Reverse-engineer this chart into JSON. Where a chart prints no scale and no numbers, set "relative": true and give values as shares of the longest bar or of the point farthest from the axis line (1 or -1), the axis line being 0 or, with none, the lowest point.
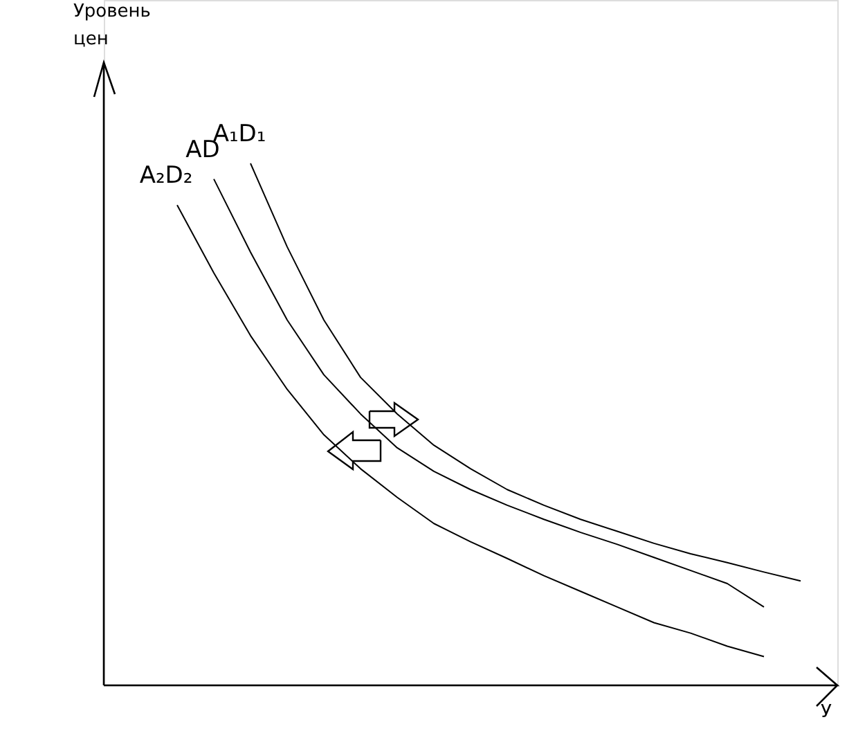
{
  "chart_data": {
    "type": "line",
    "relative": true,
    "xlabel": "У",
    "annotations": [
      "Уровень цен"
    ],
    "tick_labels": false,
    "grid": false,
    "marker": "none",
    "line_style": "solid",
    "categories": [
      null,
      null,
      null,
      null,
      null,
      null,
      null,
      null,
      null,
      null,
      null,
      null,
      null,
      null,
      null,
      null,
      null,
      null
    ],
    "series": [
      {
        "name": "A₂D₂",
        "color": "#000000",
        "values": [
          0.92,
          0.79,
          0.67,
          0.567,
          0.48,
          0.415,
          0.36,
          0.31,
          0.275,
          0.243,
          0.21,
          0.18,
          0.15,
          0.12,
          0.1,
          0.075,
          0.055,
          null
        ]
      },
      {
        "name": "AD",
        "color": "#000000",
        "values": [
          null,
          0.97,
          0.83,
          0.7,
          0.595,
          0.52,
          0.455,
          0.41,
          0.375,
          0.345,
          0.318,
          0.293,
          0.27,
          0.245,
          0.22,
          0.195,
          0.15,
          null
        ]
      },
      {
        "name": "A₁D₁",
        "color": "#000000",
        "values": [
          null,
          null,
          1,
          0.84,
          0.7,
          0.59,
          0.52,
          0.46,
          0.415,
          0.375,
          0.345,
          0.318,
          0.295,
          0.272,
          0.252,
          0.235,
          0.217,
          0.2
        ]
      }
    ]
  }
}
